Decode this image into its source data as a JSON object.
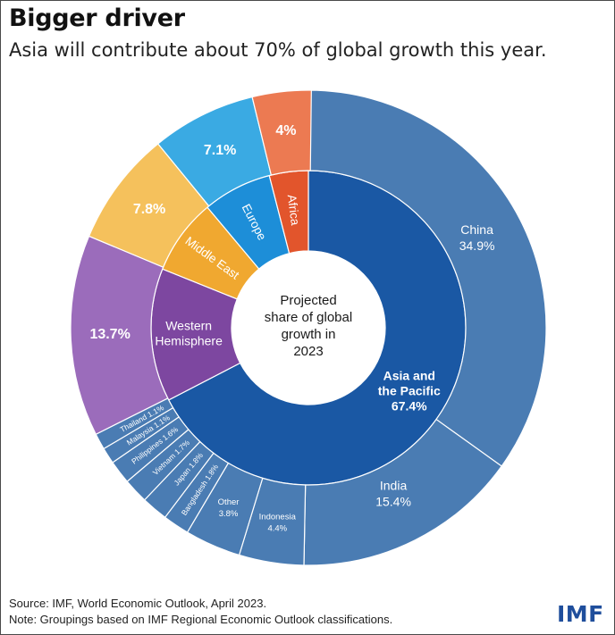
{
  "header": {
    "title": "Bigger driver",
    "subtitle": "Asia will contribute about 70% of global growth this year."
  },
  "footer": {
    "source": "Source: IMF, World Economic Outlook, April 2023.",
    "note": "Note: Groupings based on IMF Regional Economic Outlook classifications.",
    "logo": "IMF"
  },
  "chart_data": {
    "type": "pie",
    "center_label": [
      "Projected",
      "share of global",
      "growth in",
      "2023"
    ],
    "inner": [
      {
        "name": "Asia and the Pacific",
        "value": 67.4,
        "label": "67.4%",
        "color": "#1a58a4"
      },
      {
        "name": "Western Hemisphere",
        "value": 13.7,
        "color": "#7d47a0"
      },
      {
        "name": "Middle East",
        "value": 7.8,
        "color": "#f0a830"
      },
      {
        "name": "Europe",
        "value": 7.1,
        "color": "#1d8ed8"
      },
      {
        "name": "Africa",
        "value": 4.0,
        "color": "#e2552c"
      }
    ],
    "outer": [
      {
        "name": "China",
        "value": 34.9,
        "label": "34.9%",
        "color": "#4a7cb3"
      },
      {
        "name": "India",
        "value": 15.4,
        "label": "15.4%",
        "color": "#4a7cb3"
      },
      {
        "name": "Indonesia",
        "value": 4.4,
        "label": "4.4%",
        "color": "#4a7cb3"
      },
      {
        "name": "Other",
        "value": 3.8,
        "label": "3.8%",
        "color": "#4a7cb3"
      },
      {
        "name": "Bangladesh",
        "value": 1.8,
        "label": "1.8%",
        "color": "#4a7cb3"
      },
      {
        "name": "Japan",
        "value": 1.8,
        "label": "1.8%",
        "color": "#4a7cb3"
      },
      {
        "name": "Vietnam",
        "value": 1.7,
        "label": "1.7%",
        "color": "#4a7cb3"
      },
      {
        "name": "Philippines",
        "value": 1.6,
        "label": "1.6%",
        "color": "#4a7cb3"
      },
      {
        "name": "Malaysia",
        "value": 1.1,
        "label": "1.1%",
        "color": "#4a7cb3"
      },
      {
        "name": "Thailand",
        "value": 1.1,
        "label": "1.1%",
        "color": "#4a7cb3"
      },
      {
        "name": "",
        "value": 13.7,
        "label": "13.7%",
        "color": "#9b6cbb"
      },
      {
        "name": "",
        "value": 7.8,
        "label": "7.8%",
        "color": "#f5c15c"
      },
      {
        "name": "",
        "value": 7.1,
        "label": "7.1%",
        "color": "#3aaae3"
      },
      {
        "name": "",
        "value": 4.0,
        "label": "4%",
        "color": "#ec7a52"
      }
    ]
  }
}
